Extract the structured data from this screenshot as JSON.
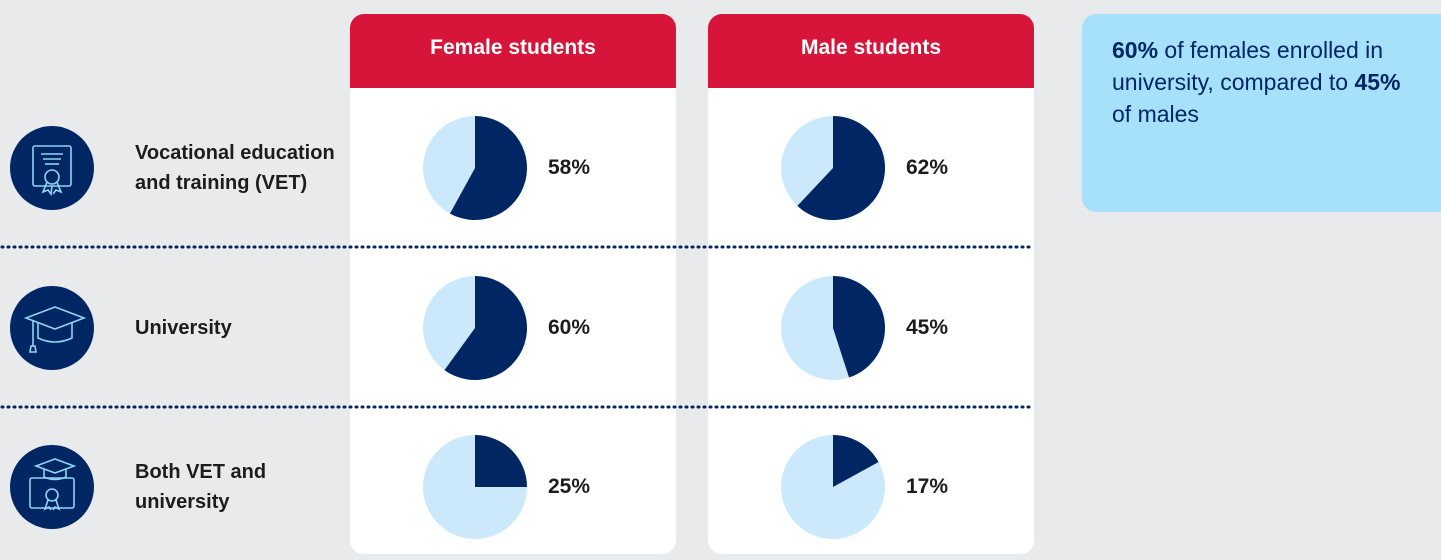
{
  "type": "pie",
  "columns": [
    "Female students",
    "Male students"
  ],
  "rows": [
    {
      "label": "Vocational education and training (VET)",
      "values": [
        58,
        62
      ],
      "value_labels": [
        "58%",
        "62%"
      ]
    },
    {
      "label": "University",
      "values": [
        60,
        45
      ],
      "value_labels": [
        "60%",
        "45%"
      ]
    },
    {
      "label": "Both VET and university",
      "values": [
        25,
        17
      ],
      "value_labels": [
        "25%",
        "17%"
      ]
    }
  ],
  "colors": {
    "filled": "#002664",
    "rest": "#cbe9fa",
    "header": "#d7153a"
  },
  "callout": [
    {
      "text": "60%",
      "bold": true
    },
    {
      "text": " of females enrolled in university, compared to ",
      "bold": false
    },
    {
      "text": "45%",
      "bold": true
    },
    {
      "text": " of males",
      "bold": false
    }
  ]
}
